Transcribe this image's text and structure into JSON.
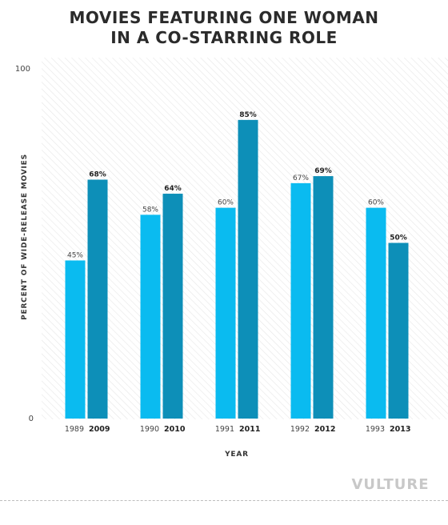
{
  "title": {
    "line1": "MOVIES FEATURING ONE WOMAN",
    "line2": "IN A CO-STARRING ROLE"
  },
  "logo": "VULTURE",
  "colors": {
    "early_series": "#0abbf0",
    "late_series": "#0d8fb8",
    "label": "#444444",
    "logo": "#c8c8c8"
  },
  "chart_data": {
    "type": "bar",
    "xlabel": "YEAR",
    "ylabel": "PERCENT OF WIDE-RELEASE MOVIES",
    "ylim": [
      0,
      100
    ],
    "yticks": [
      "0",
      "100"
    ],
    "grid": false,
    "groups": [
      {
        "early_year": "1989",
        "late_year": "2009",
        "early_value": 45,
        "late_value": 68,
        "early_label": "45%",
        "late_label": "68%"
      },
      {
        "early_year": "1990",
        "late_year": "2010",
        "early_value": 58,
        "late_value": 64,
        "early_label": "58%",
        "late_label": "64%"
      },
      {
        "early_year": "1991",
        "late_year": "2011",
        "early_value": 60,
        "late_value": 85,
        "early_label": "60%",
        "late_label": "85%"
      },
      {
        "early_year": "1992",
        "late_year": "2012",
        "early_value": 67,
        "late_value": 69,
        "early_label": "67%",
        "late_label": "69%"
      },
      {
        "early_year": "1993",
        "late_year": "2013",
        "early_value": 60,
        "late_value": 50,
        "early_label": "60%",
        "late_label": "50%"
      }
    ]
  }
}
